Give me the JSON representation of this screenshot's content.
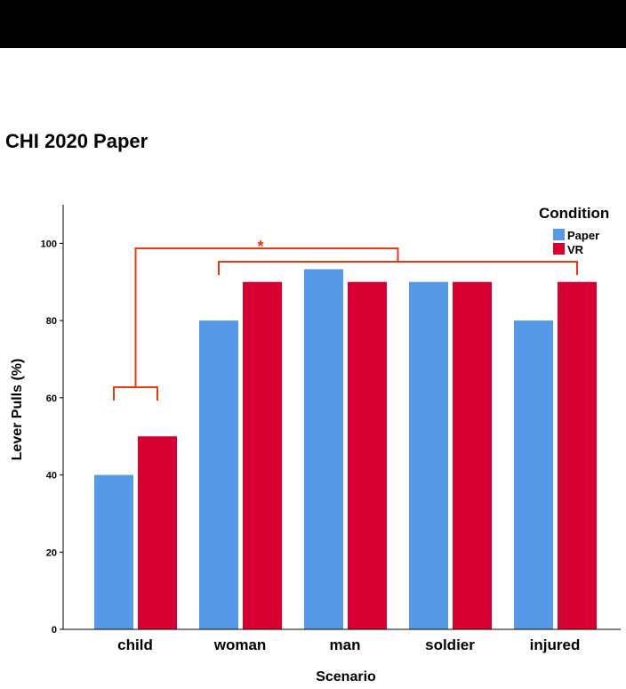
{
  "header": {
    "title": "CHI 2020 Paper"
  },
  "chart_data": {
    "type": "bar",
    "xlabel": "Scenario",
    "ylabel": "Lever Pulls (%)",
    "ylim": [
      0,
      110
    ],
    "yticks": [
      0,
      20,
      40,
      60,
      80,
      100
    ],
    "categories": [
      "child",
      "woman",
      "man",
      "soldier",
      "injured"
    ],
    "series": [
      {
        "name": "Paper",
        "color": "#5699e6",
        "values": [
          40,
          80,
          93.3,
          90,
          80
        ]
      },
      {
        "name": "VR",
        "color": "#d80032",
        "values": [
          50,
          90,
          90,
          90,
          90
        ]
      }
    ],
    "legend": {
      "title": "Condition",
      "position": "top-right"
    },
    "grid": false,
    "annotations": [
      {
        "type": "significance",
        "label": "*",
        "color": "#e8380d"
      }
    ]
  }
}
